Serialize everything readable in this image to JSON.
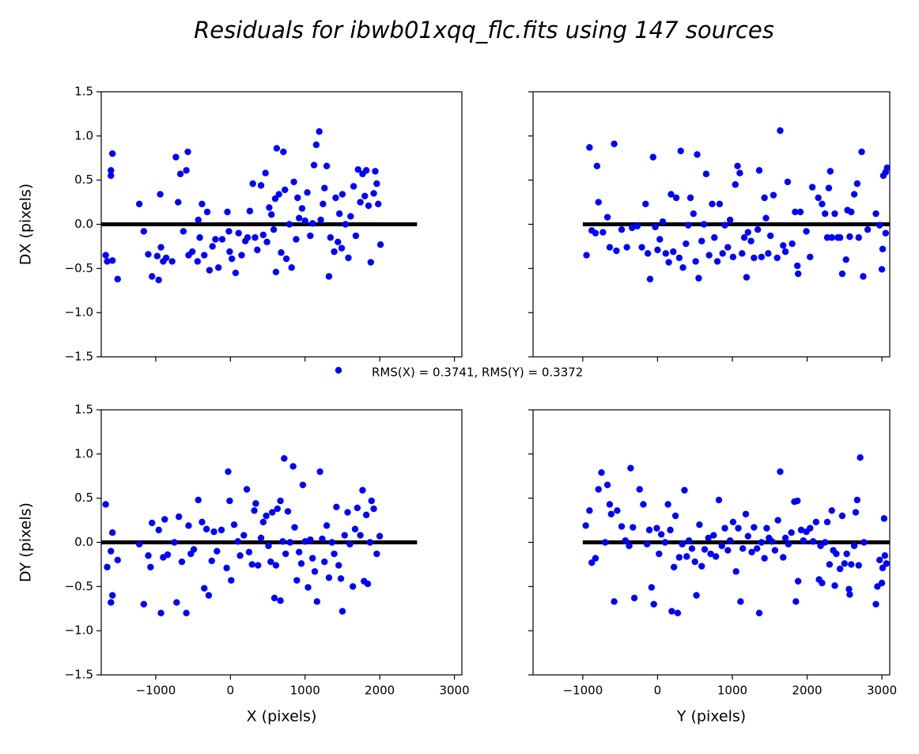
{
  "title": "Residuals for ibwb01xqq_flc.fits using 147 sources",
  "legend": {
    "label": "RMS(X) = 0.3741, RMS(Y) = 0.3372",
    "color": "#0000ff"
  },
  "chart_data": [
    {
      "type": "scatter",
      "ylabel": "DX (pixels)",
      "x": [
        -1670,
        -1650,
        -1600,
        -1600,
        -1580,
        -1580,
        -1510,
        -1220,
        -1160,
        -1100,
        -1050,
        -980,
        -960,
        -940,
        -930,
        -900,
        -860,
        -780,
        -730,
        -700,
        -670,
        -630,
        -590,
        -570,
        -560,
        -510,
        -440,
        -430,
        -410,
        -380,
        -350,
        -310,
        -280,
        -240,
        -200,
        -160,
        -110,
        -40,
        -20,
        -10,
        20,
        70,
        110,
        150,
        200,
        230,
        260,
        300,
        330,
        360,
        410,
        440,
        470,
        490,
        520,
        550,
        580,
        600,
        610,
        620,
        650,
        680,
        710,
        730,
        750,
        790,
        820,
        850,
        880,
        900,
        920,
        960,
        1000,
        1030,
        1070,
        1100,
        1120,
        1150,
        1190,
        1210,
        1240,
        1260,
        1290,
        1320,
        1340,
        1390,
        1410,
        1440,
        1460,
        1490,
        1500,
        1540,
        1580,
        1610,
        1650,
        1680,
        1710,
        1740,
        1770,
        1800,
        1820,
        1850,
        1880,
        1920,
        1940,
        1960,
        1980,
        2010
      ],
      "series": [
        {
          "color": "#0000ff",
          "values": [
            -0.35,
            -0.42,
            0.61,
            0.55,
            0.8,
            -0.41,
            -0.62,
            0.23,
            -0.08,
            -0.34,
            -0.59,
            -0.36,
            -0.63,
            0.34,
            -0.26,
            -0.42,
            -0.38,
            -0.42,
            0.76,
            0.25,
            0.57,
            -0.08,
            0.61,
            0.82,
            -0.35,
            -0.31,
            -0.42,
            0.05,
            -0.15,
            0.23,
            -0.35,
            0.14,
            -0.52,
            -0.25,
            -0.17,
            -0.49,
            -0.17,
            0.14,
            -0.08,
            -0.31,
            -0.39,
            -0.55,
            -0.1,
            -0.35,
            -0.19,
            -0.15,
            0.15,
            0.46,
            -0.15,
            -0.29,
            0.44,
            -0.12,
            0.58,
            -0.2,
            0.19,
            0.11,
            -0.06,
            0.29,
            -0.54,
            0.86,
            0.34,
            -0.32,
            0.82,
            0.39,
            -0.39,
            0,
            -0.49,
            0.48,
            -0.17,
            0.3,
            0.07,
            0.18,
            0.04,
            0.36,
            -0.13,
            0.01,
            0.67,
            0.9,
            1.05,
            0.05,
            0.23,
            0.41,
            0.66,
            -0.59,
            -0.15,
            -0.31,
            0.3,
            -0.2,
            0.12,
            -0.27,
            0.34,
            0,
            -0.38,
            0.09,
            0.43,
            -0.13,
            0.62,
            0.25,
            0.57,
            0.32,
            0.61,
            0.21,
            -0.43,
            0.35,
            0.6,
            0.46,
            0.23,
            -0.23
          ]
        }
      ],
      "reference_line": {
        "y": 0,
        "x": [
          -1730,
          2500
        ],
        "color": "#000000"
      },
      "xlim": [
        -1730,
        3100
      ],
      "ylim": [
        -1.5,
        1.5
      ],
      "xticks": [
        -1000,
        0,
        1000,
        2000,
        3000
      ],
      "xticklabels": false,
      "yticks": [
        {
          "value": -1.5,
          "label": "−1.5"
        },
        {
          "value": -1,
          "label": "−1.0"
        },
        {
          "value": -0.5,
          "label": "−0.5"
        },
        {
          "value": 0,
          "label": "0.0"
        },
        0.5,
        {
          "value": 1,
          "label": "1.0"
        },
        1.5
      ],
      "yticklabels": true
    },
    {
      "type": "scatter",
      "x": [
        -950,
        -910,
        -880,
        -830,
        -810,
        -790,
        -730,
        -670,
        -640,
        -580,
        -550,
        -480,
        -410,
        -340,
        -270,
        -210,
        -160,
        -130,
        -100,
        -60,
        -30,
        0,
        30,
        70,
        110,
        150,
        180,
        210,
        250,
        290,
        310,
        340,
        380,
        410,
        440,
        480,
        510,
        530,
        550,
        590,
        620,
        650,
        690,
        730,
        760,
        800,
        830,
        870,
        900,
        940,
        970,
        1010,
        1040,
        1070,
        1100,
        1130,
        1160,
        1190,
        1210,
        1250,
        1290,
        1340,
        1360,
        1390,
        1430,
        1450,
        1480,
        1510,
        1550,
        1600,
        1640,
        1680,
        1710,
        1740,
        1800,
        1840,
        1870,
        1880,
        1910,
        1990,
        2040,
        2070,
        2150,
        2200,
        2240,
        2270,
        2290,
        2310,
        2330,
        2370,
        2410,
        2440,
        2470,
        2520,
        2540,
        2570,
        2590,
        2630,
        2670,
        2690,
        2730,
        2750,
        2810,
        2920,
        2970,
        3000,
        3010,
        3020,
        3050,
        3070,
        3050
      ],
      "series": [
        {
          "color": "#0000ff",
          "values": [
            -0.35,
            0.87,
            -0.07,
            -0.1,
            0.66,
            0.25,
            -0.09,
            0.08,
            -0.26,
            0.91,
            -0.3,
            -0.06,
            -0.26,
            -0.04,
            -0.02,
            -0.26,
            0.23,
            -0.33,
            -0.62,
            0.76,
            -0.03,
            -0.29,
            -0.17,
            0.03,
            -0.33,
            -0.43,
            0.34,
            -0.31,
            0.3,
            -0.38,
            0.83,
            -0.49,
            -0.22,
            -0.01,
            0.3,
            0.12,
            -0.42,
            0.79,
            -0.61,
            -0.19,
            0,
            0.57,
            -0.35,
            0.23,
            -0.15,
            -0.42,
            0.23,
            -0.33,
            -0.01,
            -0.26,
            0.05,
            -0.37,
            0.45,
            0.66,
            0.58,
            -0.33,
            -0.15,
            -0.6,
            -0.09,
            -0.19,
            -0.38,
            -0.06,
            0.61,
            -0.37,
            0.3,
            0.07,
            -0.33,
            -0.13,
            0.33,
            -0.38,
            1.06,
            -0.24,
            -0.31,
            0.48,
            -0.22,
            0.14,
            -0.47,
            -0.56,
            0.14,
            -0.08,
            -0.37,
            0.42,
            0.3,
            0.23,
            0.12,
            -0.15,
            0.41,
            0.6,
            -0.15,
            0.12,
            -0.15,
            -0.15,
            -0.56,
            -0.4,
            0.16,
            -0.14,
            0.14,
            0.34,
            0.46,
            -0.15,
            0.82,
            -0.59,
            -0.06,
            0.12,
            -0.01,
            -0.51,
            -0.28,
            0.55,
            0.59,
            0.64,
            -0.1
          ]
        }
      ],
      "reference_line": {
        "y": 0,
        "x": [
          -1000,
          3105
        ],
        "color": "#000000"
      },
      "xlim": [
        -1665,
        3105
      ],
      "ylim": [
        -1.5,
        1.5
      ],
      "xticks": [
        -1000,
        0,
        1000,
        2000,
        3000
      ],
      "xticklabels": false,
      "yticks": [
        -1.5,
        -1,
        -0.5,
        0,
        0.5,
        1,
        1.5
      ],
      "yticklabels": false
    },
    {
      "type": "scatter",
      "xlabel": "X (pixels)",
      "ylabel": "DY (pixels)",
      "x": [
        -1670,
        -1650,
        -1600,
        -1600,
        -1580,
        -1580,
        -1510,
        -1220,
        -1160,
        -1100,
        -1070,
        -1050,
        -960,
        -930,
        -900,
        -880,
        -840,
        -750,
        -720,
        -690,
        -650,
        -590,
        -560,
        -530,
        -490,
        -430,
        -380,
        -350,
        -320,
        -290,
        -250,
        -220,
        -180,
        -120,
        -50,
        -30,
        -10,
        10,
        50,
        100,
        130,
        180,
        220,
        250,
        290,
        320,
        340,
        370,
        410,
        440,
        480,
        510,
        540,
        560,
        590,
        610,
        630,
        670,
        670,
        700,
        720,
        740,
        770,
        800,
        840,
        860,
        890,
        920,
        950,
        970,
        1000,
        1040,
        1070,
        1100,
        1130,
        1160,
        1200,
        1230,
        1260,
        1290,
        1320,
        1360,
        1390,
        1420,
        1450,
        1480,
        1500,
        1530,
        1570,
        1600,
        1640,
        1670,
        1700,
        1740,
        1770,
        1790,
        1820,
        1840,
        1870,
        1890,
        1920,
        1960,
        2000
      ],
      "series": [
        {
          "color": "#0000ff",
          "values": [
            0.43,
            -0.28,
            -0.1,
            -0.68,
            0.11,
            -0.6,
            -0.2,
            -0.02,
            -0.7,
            -0.15,
            -0.28,
            0.22,
            0.14,
            -0.8,
            -0.17,
            0.26,
            -0.14,
            0,
            -0.68,
            0.29,
            -0.22,
            -0.8,
            0.19,
            -0.13,
            -0.08,
            0.48,
            0.23,
            -0.52,
            0.15,
            -0.6,
            -0.21,
            0.12,
            -0.1,
            0.14,
            -0.29,
            0.8,
            0.47,
            -0.43,
            0.2,
            0.01,
            -0.15,
            0.08,
            0.6,
            -0.11,
            -0.25,
            0.36,
            0.44,
            -0.26,
            0.05,
            0.23,
            0.3,
            -0.04,
            -0.22,
            0.34,
            -0.63,
            -0.26,
            0.38,
            0.47,
            -0.66,
            0.01,
            0.95,
            -0.13,
            0.35,
            0,
            0.86,
            0.17,
            -0.43,
            -0.11,
            -0.24,
            0.65,
            0.01,
            -0.51,
            0.03,
            -0.18,
            -0.33,
            -0.67,
            0.8,
            0.04,
            -0.22,
            0.19,
            -0.4,
            0,
            -0.13,
            0.4,
            -0.26,
            -0.41,
            -0.78,
            0.08,
            0.34,
            -0.02,
            -0.5,
            0.15,
            0.39,
            0.08,
            0.59,
            -0.44,
            0.31,
            -0.47,
            0,
            0.47,
            0.38,
            -0.13,
            0.07
          ]
        }
      ],
      "reference_line": {
        "y": 0,
        "x": [
          -1730,
          2500
        ],
        "color": "#000000"
      },
      "xlim": [
        -1730,
        3100
      ],
      "ylim": [
        -1.5,
        1.5
      ],
      "xticks": [
        {
          "value": -1000,
          "label": "−1000"
        },
        0,
        1000,
        2000,
        3000
      ],
      "xticklabels": true,
      "yticks": [
        {
          "value": -1.5,
          "label": "−1.5"
        },
        {
          "value": -1,
          "label": "−1.0"
        },
        {
          "value": -0.5,
          "label": "−0.5"
        },
        {
          "value": 0,
          "label": "0.0"
        },
        0.5,
        {
          "value": 1,
          "label": "1.0"
        },
        1.5
      ],
      "yticklabels": true
    },
    {
      "type": "scatter",
      "xlabel": "Y (pixels)",
      "x": [
        -960,
        -910,
        -880,
        -830,
        -790,
        -750,
        -700,
        -670,
        -640,
        -620,
        -580,
        -540,
        -480,
        -430,
        -380,
        -360,
        -330,
        -310,
        -240,
        -190,
        -140,
        -110,
        -80,
        -50,
        -10,
        20,
        50,
        100,
        140,
        170,
        190,
        220,
        240,
        270,
        290,
        330,
        360,
        390,
        420,
        460,
        500,
        520,
        560,
        590,
        630,
        680,
        710,
        750,
        780,
        820,
        860,
        900,
        940,
        970,
        1010,
        1050,
        1080,
        1110,
        1140,
        1180,
        1210,
        1260,
        1290,
        1330,
        1360,
        1390,
        1430,
        1460,
        1490,
        1530,
        1570,
        1610,
        1640,
        1680,
        1710,
        1750,
        1790,
        1830,
        1850,
        1870,
        1880,
        1920,
        1950,
        1990,
        2040,
        2080,
        2120,
        2160,
        2180,
        2200,
        2240,
        2270,
        2300,
        2330,
        2350,
        2370,
        2390,
        2440,
        2470,
        2500,
        2530,
        2560,
        2570,
        2590,
        2630,
        2650,
        2670,
        2690,
        2710,
        2760,
        2920,
        2940,
        2970,
        3000,
        3010,
        3030,
        3040,
        3060
      ],
      "series": [
        {
          "color": "#0000ff",
          "values": [
            0.19,
            0.36,
            -0.23,
            -0.18,
            0.6,
            0.79,
            0,
            0.65,
            0.43,
            0.32,
            -0.67,
            0.36,
            0.18,
            0.02,
            -0.04,
            0.84,
            0.17,
            -0.63,
            0.6,
            0.43,
            -0.02,
            0.14,
            -0.51,
            -0.7,
            0.16,
            -0.13,
            0.09,
            0,
            0.43,
            0.14,
            -0.78,
            -0.28,
            0.3,
            -0.8,
            -0.17,
            -0.02,
            0.59,
            -0.16,
            0.02,
            -0.07,
            -0.22,
            -0.6,
            0.2,
            -0.27,
            -0.08,
            0.05,
            -0.13,
            0.08,
            -0.16,
            0.48,
            -0.04,
            0.16,
            -0.09,
            0.02,
            0.23,
            -0.33,
            0.16,
            -0.67,
            -0.07,
            0.32,
            0.07,
            -0.11,
            0.17,
            -0.07,
            -0.8,
            0,
            -0.18,
            0.16,
            0.05,
            0.01,
            -0.09,
            0.25,
            0.8,
            -0.17,
            0.05,
            -0.02,
            0.11,
            0.46,
            -0.67,
            0.47,
            -0.44,
            0.14,
            0.02,
            0.12,
            0.16,
            0.01,
            0.23,
            -0.42,
            -0.04,
            -0.46,
            0,
            0.23,
            -0.25,
            0.36,
            -0.09,
            -0.49,
            -0.13,
            -0.3,
            0.3,
            -0.24,
            -0.13,
            -0.53,
            -0.59,
            -0.25,
            -0.04,
            0.34,
            0.48,
            -0.26,
            0.96,
            0,
            -0.7,
            -0.5,
            -0.2,
            -0.46,
            -0.29,
            0.27,
            -0.15,
            -0.24
          ]
        }
      ],
      "reference_line": {
        "y": 0,
        "x": [
          -1000,
          3105
        ],
        "color": "#000000"
      },
      "xlim": [
        -1665,
        3105
      ],
      "ylim": [
        -1.5,
        1.5
      ],
      "xticks": [
        {
          "value": -1000,
          "label": "−1000"
        },
        0,
        1000,
        2000,
        3000
      ],
      "xticklabels": true,
      "yticks": [
        -1.5,
        -1,
        -0.5,
        0,
        0.5,
        1,
        1.5
      ],
      "yticklabels": false
    }
  ]
}
